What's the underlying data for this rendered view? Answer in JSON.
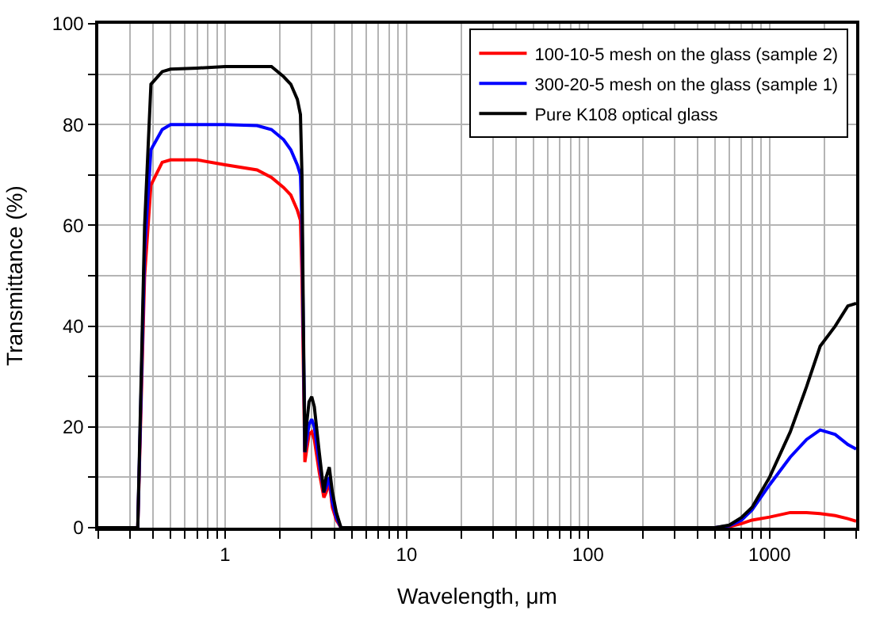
{
  "chart_data": {
    "type": "line",
    "xlabel": "Wavelength, μm",
    "ylabel": "Transmittance (%)",
    "log": "x",
    "grid": true,
    "legend": "top right",
    "marker": "none",
    "line_style": "solid",
    "xlim": [
      0.2,
      3000
    ],
    "ylim": [
      0,
      100
    ],
    "xticks": [
      {
        "value": 0.2,
        "label": null
      },
      {
        "value": 0.3,
        "label": null
      },
      {
        "value": 0.4,
        "label": null
      },
      {
        "value": 0.5,
        "label": null
      },
      {
        "value": 0.6,
        "label": null
      },
      {
        "value": 0.7,
        "label": null
      },
      {
        "value": 0.8,
        "label": null
      },
      {
        "value": 0.9,
        "label": null
      },
      1,
      {
        "value": 2,
        "label": null
      },
      {
        "value": 3,
        "label": null
      },
      {
        "value": 4,
        "label": null
      },
      {
        "value": 5,
        "label": null
      },
      {
        "value": 6,
        "label": null
      },
      {
        "value": 7,
        "label": null
      },
      {
        "value": 8,
        "label": null
      },
      {
        "value": 9,
        "label": null
      },
      10,
      {
        "value": 20,
        "label": null
      },
      {
        "value": 30,
        "label": null
      },
      {
        "value": 40,
        "label": null
      },
      {
        "value": 50,
        "label": null
      },
      {
        "value": 60,
        "label": null
      },
      {
        "value": 70,
        "label": null
      },
      {
        "value": 80,
        "label": null
      },
      {
        "value": 90,
        "label": null
      },
      100,
      {
        "value": 200,
        "label": null
      },
      {
        "value": 300,
        "label": null
      },
      {
        "value": 400,
        "label": null
      },
      {
        "value": 500,
        "label": null
      },
      {
        "value": 600,
        "label": null
      },
      {
        "value": 700,
        "label": null
      },
      {
        "value": 800,
        "label": null
      },
      {
        "value": 900,
        "label": null
      },
      1000,
      {
        "value": 2000,
        "label": null
      },
      {
        "value": 3000,
        "label": null
      }
    ],
    "yticks": [
      0,
      {
        "value": 10,
        "label": null
      },
      20,
      {
        "value": 30,
        "label": null
      },
      40,
      {
        "value": 50,
        "label": null
      },
      60,
      {
        "value": 70,
        "label": null
      },
      80,
      {
        "value": 90,
        "label": null
      },
      100
    ],
    "series": [
      {
        "name": "100-10-5 mesh on the glass (sample 2)",
        "color": "#ff0000",
        "x": [
          0.2,
          0.33,
          0.36,
          0.39,
          0.45,
          0.5,
          0.7,
          1,
          1.5,
          1.8,
          2.1,
          2.3,
          2.5,
          2.6,
          2.65,
          2.75,
          2.8,
          2.9,
          3.0,
          3.1,
          3.3,
          3.5,
          3.6,
          3.75,
          3.9,
          4.1,
          4.35,
          10,
          100,
          500,
          600,
          700,
          800,
          1000,
          1300,
          1600,
          1900,
          2300,
          2700,
          3000
        ],
        "values": [
          0,
          0,
          50,
          68,
          72.5,
          73,
          73,
          72,
          71,
          69.5,
          67.5,
          66,
          63,
          61,
          50,
          13,
          15,
          18.5,
          19,
          17.5,
          11,
          6,
          7,
          9,
          4,
          1.5,
          0,
          0,
          0,
          0,
          0.2,
          0.8,
          1.5,
          2.1,
          3,
          3,
          2.8,
          2.4,
          1.8,
          1.3
        ]
      },
      {
        "name": "300-20-5 mesh on the glass (sample 1)",
        "color": "#0000ff",
        "x": [
          0.2,
          0.33,
          0.36,
          0.39,
          0.45,
          0.5,
          0.7,
          1,
          1.5,
          1.8,
          2.1,
          2.3,
          2.5,
          2.6,
          2.65,
          2.75,
          2.8,
          2.9,
          3.0,
          3.1,
          3.3,
          3.5,
          3.6,
          3.75,
          3.9,
          4.1,
          4.35,
          10,
          100,
          500,
          600,
          700,
          800,
          1000,
          1300,
          1600,
          1900,
          2300,
          2700,
          3000
        ],
        "values": [
          0,
          0,
          55,
          75,
          79,
          80,
          80,
          80,
          79.8,
          79,
          77,
          75,
          72,
          70,
          60,
          15,
          17,
          20.5,
          21.5,
          20,
          13,
          7,
          8,
          10,
          5,
          2,
          0,
          0,
          0,
          0,
          0.4,
          1.5,
          3.5,
          8.5,
          14,
          17.5,
          19.4,
          18.5,
          16.5,
          15.6
        ]
      },
      {
        "name": "Pure K108 optical glass",
        "color": "#000000",
        "x": [
          0.2,
          0.33,
          0.36,
          0.39,
          0.45,
          0.5,
          0.7,
          1,
          1.5,
          1.8,
          2.1,
          2.3,
          2.5,
          2.6,
          2.65,
          2.7,
          2.75,
          2.8,
          2.9,
          3.0,
          3.1,
          3.3,
          3.5,
          3.6,
          3.75,
          3.9,
          4.1,
          4.35,
          10,
          100,
          500,
          600,
          700,
          800,
          1000,
          1300,
          1600,
          1900,
          2300,
          2700,
          3000
        ],
        "values": [
          0,
          0,
          60,
          88,
          90.5,
          91,
          91.2,
          91.5,
          91.5,
          91.5,
          89.5,
          88,
          85,
          82,
          70,
          40,
          15,
          20,
          25,
          26,
          24,
          15,
          7,
          10,
          12,
          7,
          3,
          0,
          0,
          0,
          0,
          0.5,
          2,
          4,
          10,
          19,
          28,
          36,
          40,
          44,
          44.5
        ]
      }
    ]
  }
}
